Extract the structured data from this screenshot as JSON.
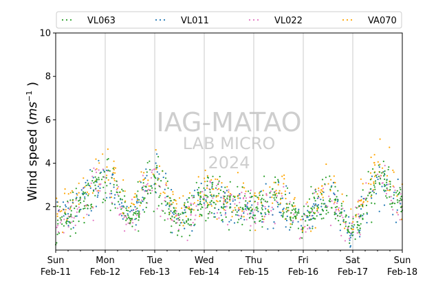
{
  "chart_data": {
    "type": "scatter",
    "ylabel_main": "Wind speed (",
    "ylabel_unit_base": "ms",
    "ylabel_unit_exp": "−1",
    "ylabel_close": ")",
    "ylim": [
      0,
      10
    ],
    "yticks": [
      "2",
      "4",
      "6",
      "8",
      "10"
    ],
    "xlim": [
      "2024-02-11",
      "2024-02-18"
    ],
    "xticks": [
      {
        "day": "Sun",
        "date": "Feb-11"
      },
      {
        "day": "Mon",
        "date": "Feb-12"
      },
      {
        "day": "Tue",
        "date": "Feb-13"
      },
      {
        "day": "Wed",
        "date": "Feb-14"
      },
      {
        "day": "Thu",
        "date": "Feb-15"
      },
      {
        "day": "Fri",
        "date": "Feb-16"
      },
      {
        "day": "Sat",
        "date": "Feb-17"
      },
      {
        "day": "Sun",
        "date": "Feb-18"
      }
    ],
    "grid": "vertical-at-days",
    "legend_placement": "top",
    "series": [
      {
        "name": "VL063",
        "color": "#2ca02c",
        "marker": "dot",
        "profile_peaks": [
          1.1,
          2.1,
          3.5,
          1.4,
          3.5,
          1.2,
          2.5,
          2.2,
          1.9,
          2.3,
          1.2,
          2.7,
          0.7,
          3.5,
          2.0
        ]
      },
      {
        "name": "VL011",
        "color": "#1f77b4",
        "marker": "dot",
        "profile_peaks": [
          1.1,
          2.0,
          3.4,
          1.4,
          3.4,
          1.2,
          2.4,
          2.1,
          1.9,
          2.2,
          1.2,
          2.6,
          0.7,
          3.4,
          2.0
        ]
      },
      {
        "name": "VL022",
        "color": "#e377c2",
        "marker": "dot",
        "profile_peaks": [
          1.2,
          2.0,
          3.5,
          1.3,
          3.6,
          1.1,
          2.4,
          2.2,
          1.8,
          2.3,
          1.2,
          2.7,
          0.8,
          3.5,
          2.0
        ]
      },
      {
        "name": "VA070",
        "color": "#ffa500",
        "marker": "dot",
        "profile_peaks": [
          1.9,
          2.4,
          4.0,
          1.7,
          3.9,
          1.5,
          2.6,
          2.4,
          2.1,
          2.6,
          1.5,
          2.9,
          1.1,
          3.9,
          2.3
        ]
      }
    ],
    "watermark": [
      "IAG-MATAO",
      "LAB MICRO",
      "2024"
    ]
  }
}
